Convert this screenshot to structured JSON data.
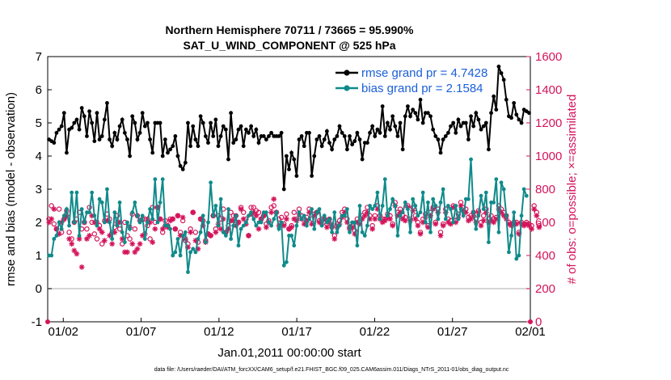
{
  "chart_data": {
    "type": "line",
    "title": "Northern Hemisphere 70711 / 73665 = 95.990%",
    "subtitle": "SAT_U_WIND_COMPONENT @ 525 hPa",
    "xlabel": "Jan.01,2011 00:00:00 start",
    "ylabel_left": "rmse and bias (model - observation)",
    "ylabel_right": "# of obs: o=possible; ×=assimilated",
    "footnote": "data file: /Users/raeder/DAI/ATM_forcXX/CAM6_setup/f.e21.FHIST_BGC.f09_025.CAM6assim.011/Diags_NTrS_2011-01/obs_diag_output.nc",
    "x_ticks": [
      "01/02",
      "01/07",
      "01/12",
      "01/17",
      "01/22",
      "01/27",
      "02/01"
    ],
    "x_tick_days": [
      2,
      7,
      12,
      17,
      22,
      27,
      32
    ],
    "x_range_days": [
      1,
      32
    ],
    "ylim_left": [
      -1,
      7
    ],
    "yticks_left": [
      "-1",
      "0",
      "1",
      "2",
      "3",
      "4",
      "5",
      "6",
      "7"
    ],
    "ylim_right": [
      0,
      1600
    ],
    "yticks_right": [
      "0",
      "200",
      "400",
      "600",
      "800",
      "1000",
      "1200",
      "1400",
      "1600"
    ],
    "grid": false,
    "zero_line": true,
    "legend_position": "top-right",
    "colors": {
      "rmse": "#000000",
      "bias": "#108a8a",
      "obs": "#d4145a",
      "legend_text": "#1a5fd9",
      "zero_line": "#c8c8c8"
    },
    "series": [
      {
        "name": "rmse grand pr = 4.7428",
        "axis": "left",
        "marker": "dot",
        "values": [
          4.5,
          4.45,
          4.4,
          4.7,
          4.8,
          4.9,
          5.3,
          4.1,
          4.8,
          4.85,
          5.0,
          5.1,
          4.8,
          5.45,
          5.2,
          4.6,
          5.35,
          5.0,
          4.45,
          5.3,
          4.5,
          4.6,
          5.1,
          5.6,
          4.5,
          4.3,
          4.7,
          4.5,
          4.9,
          5.1,
          4.7,
          4.5,
          4.0,
          5.2,
          5.0,
          4.5,
          4.7,
          5.3,
          4.9,
          5.0,
          4.5,
          4.1,
          5.0,
          5.0,
          5.0,
          4.0,
          4.5,
          4.1,
          4.2,
          4.3,
          4.6,
          4.0,
          3.7,
          3.6,
          3.8,
          5.0,
          4.3,
          4.9,
          4.5,
          4.3,
          5.2,
          5.0,
          4.6,
          4.4,
          5.0,
          4.6,
          5.1,
          4.3,
          4.6,
          4.9,
          4.8,
          3.9,
          5.3,
          4.4,
          4.5,
          4.8,
          4.9,
          4.3,
          4.8,
          4.7,
          4.9,
          4.6,
          4.8,
          4.4,
          4.6,
          4.6,
          4.5,
          4.6,
          4.7,
          4.6,
          4.6,
          4.6,
          4.7,
          3.0,
          4.0,
          3.6,
          4.1,
          3.9,
          3.4,
          4.5,
          4.6,
          4.3,
          4.7,
          4.7,
          3.4,
          4.0,
          4.5,
          4.6,
          4.3,
          4.5,
          4.75,
          4.4,
          4.2,
          4.5,
          4.6,
          4.9,
          4.7,
          4.6,
          4.2,
          4.6,
          4.35,
          4.45,
          4.7,
          4.5,
          3.9,
          4.4,
          4.4,
          4.7,
          4.9,
          4.6,
          4.8,
          4.7,
          5.5,
          4.6,
          5.0,
          4.8,
          5.2,
          4.9,
          4.6,
          5.0,
          4.2,
          5.2,
          5.5,
          5.2,
          5.4,
          5.3,
          5.1,
          5.7,
          5.0,
          5.3,
          5.3,
          5.2,
          4.8,
          4.6,
          4.5,
          4.1,
          4.5,
          4.6,
          4.7,
          4.9,
          5.0,
          4.7,
          5.1,
          4.9,
          5.0,
          5.0,
          4.5,
          5.2,
          4.9,
          5.3,
          5.1,
          4.8,
          4.9,
          5.0,
          4.2,
          5.3,
          5.8,
          5.4,
          6.7,
          6.5,
          6.3,
          5.7,
          5.2,
          5.15,
          5.6,
          5.25,
          5.1,
          5.0,
          5.4,
          5.35,
          5.3
        ]
      },
      {
        "name": "bias grand pr = 2.1584",
        "axis": "left",
        "marker": "dot",
        "values": [
          1.0,
          1.0,
          1.5,
          1.6,
          2.0,
          1.8,
          2.2,
          2.4,
          1.9,
          2.9,
          2.0,
          2.9,
          1.6,
          2.4,
          2.0,
          2.3,
          2.3,
          2.9,
          2.2,
          1.9,
          2.7,
          2.6,
          2.0,
          3.0,
          2.0,
          1.5,
          2.3,
          1.9,
          2.6,
          1.7,
          1.4,
          2.0,
          1.8,
          2.3,
          2.6,
          2.2,
          2.0,
          2.2,
          1.5,
          2.0,
          2.4,
          2.1,
          3.3,
          2.0,
          2.6,
          3.3,
          1.9,
          1.9,
          1.8,
          1.0,
          1.1,
          1.5,
          1.0,
          1.6,
          1.7,
          0.5,
          1.1,
          1.2,
          1.1,
          1.5,
          1.7,
          2.2,
          1.4,
          2.0,
          3.2,
          2.2,
          2.5,
          1.9,
          2.7,
          1.7,
          1.6,
          2.4,
          1.5,
          1.9,
          2.2,
          1.3,
          1.8,
          1.9,
          2.0,
          2.2,
          2.3,
          2.1,
          1.9,
          2.0,
          2.0,
          2.3,
          2.3,
          2.0,
          1.9,
          2.1,
          2.3,
          1.8,
          2.0,
          0.7,
          0.8,
          1.6,
          1.6,
          1.3,
          1.9,
          2.3,
          2.1,
          2.2,
          1.9,
          2.1,
          2.4,
          1.8,
          2.3,
          2.4,
          1.9,
          2.2,
          2.0,
          2.1,
          1.7,
          2.3,
          1.7,
          1.9,
          2.2,
          2.2,
          2.4,
          1.7,
          2.0,
          2.0,
          1.3,
          2.5,
          1.7,
          1.6,
          1.9,
          2.5,
          2.4,
          2.5,
          2.9,
          2.1,
          2.5,
          3.3,
          2.2,
          2.4,
          2.7,
          2.5,
          1.6,
          2.2,
          2.3,
          2.6,
          2.4,
          1.7,
          2.7,
          2.5,
          2.2,
          2.3,
          2.9,
          2.0,
          2.6,
          1.7,
          2.7,
          2.5,
          2.1,
          2.6,
          3.0,
          2.1,
          2.5,
          2.4,
          2.0,
          2.5,
          2.1,
          2.4,
          2.2,
          2.7,
          2.7,
          3.9,
          2.3,
          1.8,
          2.2,
          2.8,
          2.4,
          2.9,
          1.4,
          2.6,
          2.6,
          3.3,
          1.7,
          3.2,
          3.0,
          2.2,
          1.1,
          1.6,
          2.3,
          0.9,
          1.0,
          2.2,
          3.0,
          2.8
        ]
      },
      {
        "name": "possible",
        "axis": "right",
        "marker": "circle",
        "values": [
          620,
          700,
          590,
          560,
          680,
          540,
          620,
          670,
          540,
          500,
          600,
          620,
          660,
          560,
          600,
          560,
          690,
          600,
          530,
          500,
          580,
          470,
          610,
          650,
          620,
          540,
          570,
          640,
          560,
          470,
          600,
          520,
          500,
          650,
          560,
          640,
          610,
          620,
          620,
          580,
          500,
          690,
          600,
          690,
          620,
          540,
          610,
          580,
          620,
          620,
          560,
          640,
          540,
          610,
          490,
          470,
          560,
          660,
          540,
          480,
          620,
          610,
          490,
          530,
          520,
          640,
          560,
          640,
          620,
          680,
          540,
          580,
          660,
          640,
          640,
          600,
          690,
          660,
          620,
          520,
          690,
          690,
          670,
          660,
          620,
          640,
          590,
          610,
          690,
          700,
          660,
          620,
          630,
          590,
          650,
          560,
          580,
          660,
          620,
          680,
          640,
          620,
          630,
          680,
          620,
          650,
          660,
          610,
          620,
          620,
          590,
          620,
          570,
          520,
          590,
          610,
          660,
          680,
          620,
          570,
          580,
          550,
          620,
          600,
          640,
          660,
          690,
          640,
          580,
          640,
          700,
          640,
          620,
          620,
          650,
          640,
          590,
          720,
          660,
          680,
          640,
          630,
          700,
          620,
          690,
          640,
          600,
          540,
          620,
          650,
          580,
          660,
          690,
          600,
          680,
          540,
          590,
          680,
          620,
          610,
          700,
          610,
          650,
          720,
          690,
          680,
          630,
          640,
          660,
          620,
          670,
          600,
          640,
          680,
          620,
          640,
          620,
          630,
          700,
          680,
          660,
          640,
          600,
          590,
          600,
          600,
          540,
          600,
          590,
          600,
          590,
          580,
          700,
          660,
          580
        ]
      },
      {
        "name": "assimilated",
        "axis": "right",
        "marker": "star",
        "values": [
          600,
          620,
          680,
          560,
          530,
          600,
          620,
          640,
          500,
          470,
          430,
          410,
          500,
          330,
          600,
          500,
          520,
          640,
          600,
          600,
          560,
          540,
          490,
          610,
          520,
          470,
          540,
          600,
          600,
          500,
          420,
          420,
          570,
          470,
          420,
          440,
          470,
          520,
          530,
          620,
          600,
          480,
          560,
          690,
          620,
          560,
          580,
          570,
          610,
          620,
          560,
          640,
          520,
          630,
          500,
          450,
          540,
          660,
          490,
          440,
          620,
          580,
          480,
          530,
          520,
          640,
          540,
          590,
          560,
          620,
          540,
          560,
          610,
          610,
          580,
          600,
          680,
          620,
          590,
          520,
          650,
          660,
          640,
          560,
          620,
          640,
          570,
          600,
          660,
          740,
          660,
          580,
          590,
          580,
          620,
          560,
          570,
          620,
          610,
          650,
          620,
          590,
          610,
          660,
          590,
          640,
          660,
          600,
          590,
          620,
          570,
          600,
          580,
          500,
          570,
          590,
          630,
          660,
          600,
          560,
          570,
          530,
          600,
          590,
          620,
          640,
          660,
          620,
          560,
          620,
          680,
          620,
          600,
          610,
          630,
          620,
          580,
          700,
          640,
          660,
          620,
          610,
          690,
          610,
          670,
          620,
          580,
          530,
          600,
          630,
          570,
          640,
          680,
          590,
          660,
          520,
          580,
          660,
          600,
          590,
          690,
          600,
          630,
          700,
          670,
          660,
          610,
          620,
          640,
          600,
          660,
          580,
          610,
          660,
          600,
          610,
          600,
          620,
          680,
          660,
          640,
          620,
          590,
          580,
          590,
          590,
          530,
          590,
          580,
          590,
          580,
          560,
          680,
          640,
          570
        ]
      }
    ]
  }
}
